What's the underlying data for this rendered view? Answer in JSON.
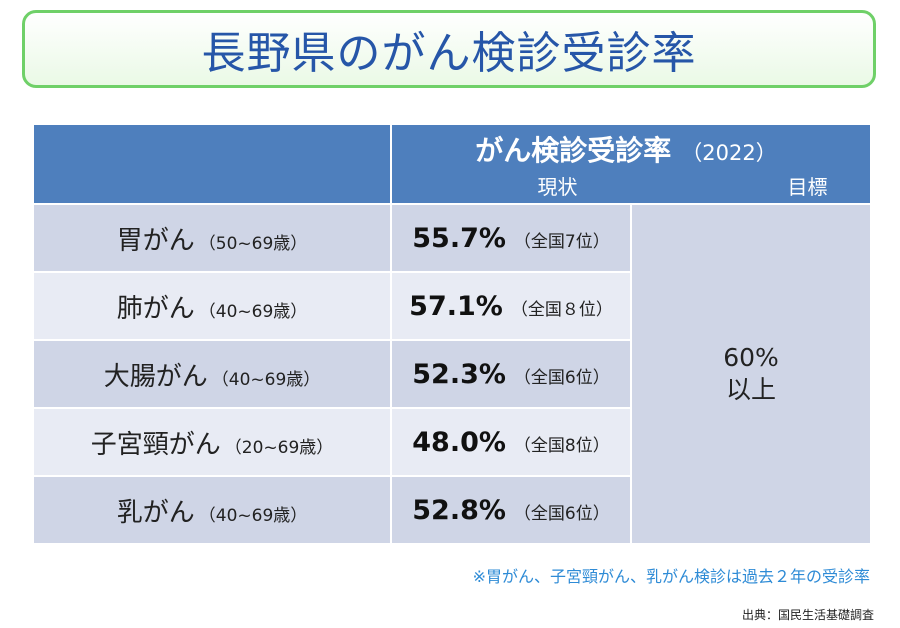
{
  "title": "長野県のがん検診受診率",
  "table": {
    "header_main": "がん検診受診率",
    "header_year": "（2022）",
    "header_current": "現状",
    "header_goal": "目標",
    "rows": [
      {
        "cancer": "胃がん",
        "age": "（50~69歳）",
        "rate": "55.7%",
        "rank": "（全国7位）"
      },
      {
        "cancer": "肺がん",
        "age": "（40~69歳）",
        "rate": "57.1%",
        "rank": "（全国８位）"
      },
      {
        "cancer": "大腸がん",
        "age": "（40~69歳）",
        "rate": "52.3%",
        "rank": "（全国6位）"
      },
      {
        "cancer": "子宮頸がん",
        "age": "（20~69歳）",
        "rate": "48.0%",
        "rank": "（全国8位）"
      },
      {
        "cancer": "乳がん",
        "age": "（40~69歳）",
        "rate": "52.8%",
        "rank": "（全国6位）"
      }
    ],
    "goal_line1": "60%",
    "goal_line2": "以上"
  },
  "note": "※胃がん、子宮頸がん、乳がん検診は過去２年の受診率",
  "source": "出典：国民生活基礎調査"
}
